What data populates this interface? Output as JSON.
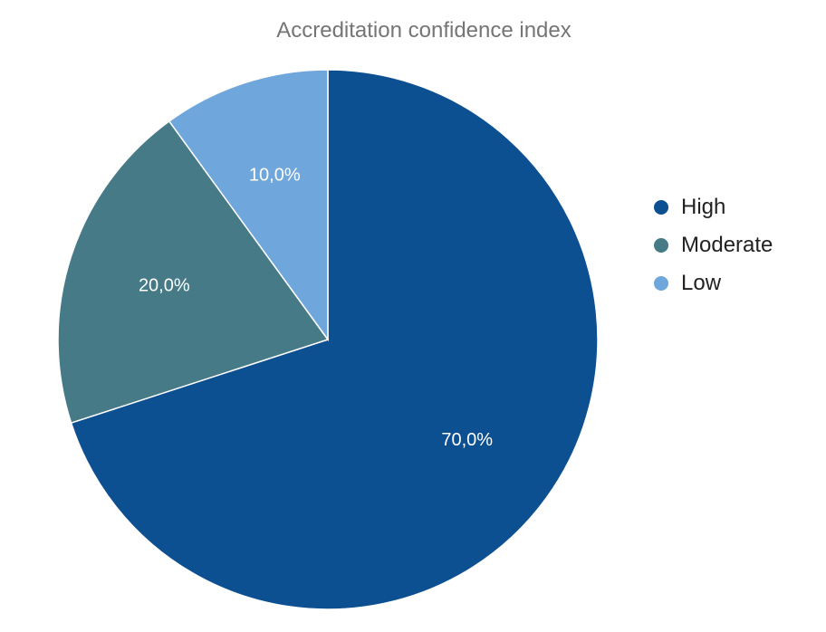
{
  "chart_data": {
    "type": "pie",
    "title": "Accreditation confidence index",
    "legend_position": "right",
    "slices": [
      {
        "name": "High",
        "value": 70,
        "label": "70,0%",
        "color": "#0d5092"
      },
      {
        "name": "Moderate",
        "value": 20,
        "label": "20,0%",
        "color": "#467a86"
      },
      {
        "name": "Low",
        "value": 10,
        "label": "10,0%",
        "color": "#6fa7dc"
      }
    ]
  }
}
